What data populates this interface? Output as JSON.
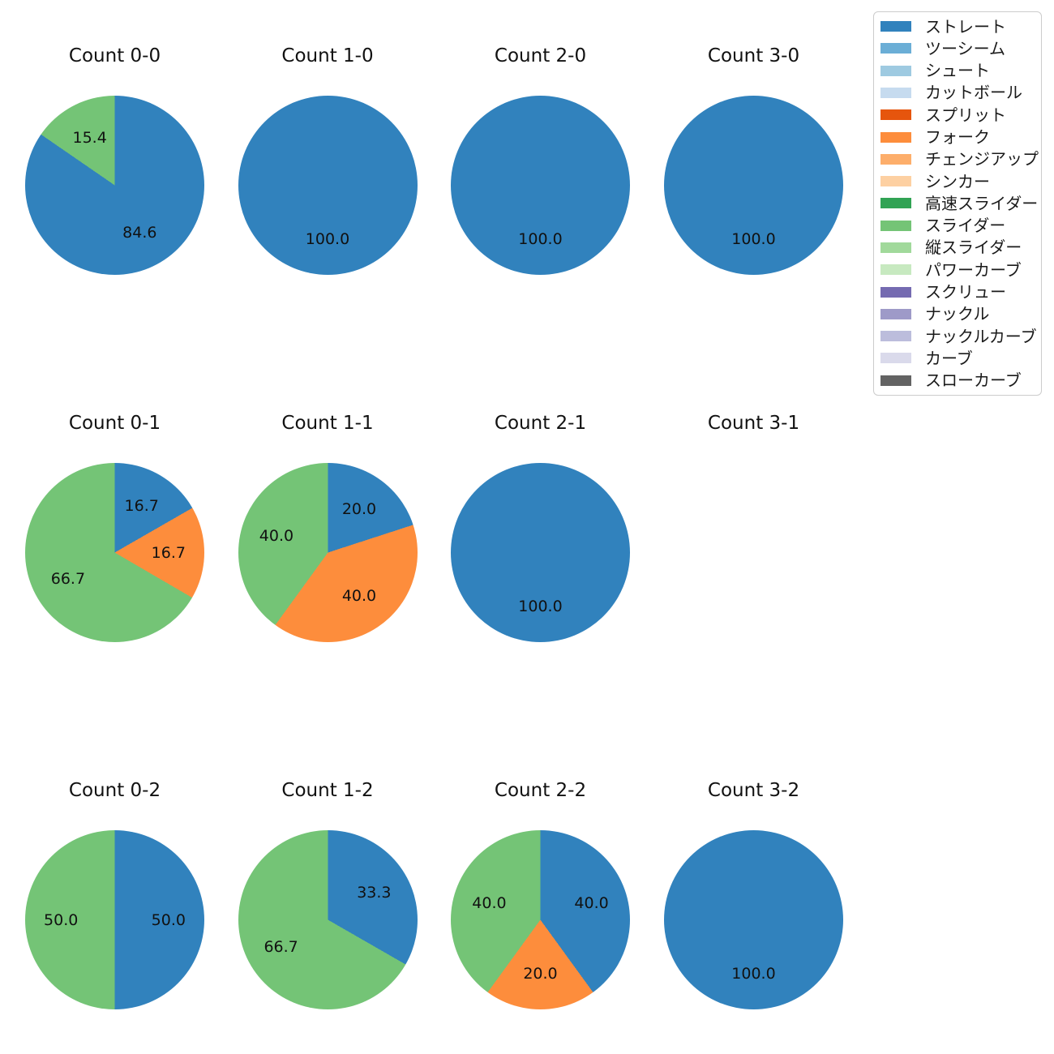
{
  "chart_data": {
    "type": "pie",
    "title": "",
    "grid": {
      "rows": 3,
      "cols": 4
    },
    "start_angle_deg_from_top": 0,
    "direction": "clockwise",
    "pct_distance": 0.6,
    "value_format": "one-decimal-percent",
    "legend": {
      "position": "outside-upper-right",
      "entries": [
        {
          "label": "ストレート",
          "color": "#3182bd"
        },
        {
          "label": "ツーシーム",
          "color": "#6baed6"
        },
        {
          "label": "シュート",
          "color": "#9ecae1"
        },
        {
          "label": "カットボール",
          "color": "#c6dbef"
        },
        {
          "label": "スプリット",
          "color": "#e6550d"
        },
        {
          "label": "フォーク",
          "color": "#fd8d3c"
        },
        {
          "label": "チェンジアップ",
          "color": "#fdae6b"
        },
        {
          "label": "シンカー",
          "color": "#fdd0a2"
        },
        {
          "label": "高速スライダー",
          "color": "#31a354"
        },
        {
          "label": "スライダー",
          "color": "#74c476"
        },
        {
          "label": "縦スライダー",
          "color": "#a1d99b"
        },
        {
          "label": "パワーカーブ",
          "color": "#c7e9c0"
        },
        {
          "label": "スクリュー",
          "color": "#756bb1"
        },
        {
          "label": "ナックル",
          "color": "#9e9ac8"
        },
        {
          "label": "ナックルカーブ",
          "color": "#bcbddc"
        },
        {
          "label": "カーブ",
          "color": "#dadaeb"
        },
        {
          "label": "スローカーブ",
          "color": "#636363"
        }
      ]
    },
    "charts": [
      {
        "title": "Count 0-0",
        "row": 0,
        "col": 0,
        "slices": [
          {
            "label": "ストレート",
            "pct": 84.6,
            "color": "#3182bd"
          },
          {
            "label": "スライダー",
            "pct": 15.4,
            "color": "#74c476"
          }
        ]
      },
      {
        "title": "Count 1-0",
        "row": 0,
        "col": 1,
        "slices": [
          {
            "label": "ストレート",
            "pct": 100.0,
            "color": "#3182bd"
          }
        ]
      },
      {
        "title": "Count 2-0",
        "row": 0,
        "col": 2,
        "slices": [
          {
            "label": "ストレート",
            "pct": 100.0,
            "color": "#3182bd"
          }
        ]
      },
      {
        "title": "Count 3-0",
        "row": 0,
        "col": 3,
        "slices": [
          {
            "label": "ストレート",
            "pct": 100.0,
            "color": "#3182bd"
          }
        ]
      },
      {
        "title": "Count 0-1",
        "row": 1,
        "col": 0,
        "slices": [
          {
            "label": "ストレート",
            "pct": 16.7,
            "color": "#3182bd"
          },
          {
            "label": "フォーク",
            "pct": 16.7,
            "color": "#fd8d3c"
          },
          {
            "label": "スライダー",
            "pct": 66.7,
            "color": "#74c476"
          }
        ]
      },
      {
        "title": "Count 1-1",
        "row": 1,
        "col": 1,
        "slices": [
          {
            "label": "ストレート",
            "pct": 20.0,
            "color": "#3182bd"
          },
          {
            "label": "フォーク",
            "pct": 40.0,
            "color": "#fd8d3c"
          },
          {
            "label": "スライダー",
            "pct": 40.0,
            "color": "#74c476"
          }
        ]
      },
      {
        "title": "Count 2-1",
        "row": 1,
        "col": 2,
        "slices": [
          {
            "label": "ストレート",
            "pct": 100.0,
            "color": "#3182bd"
          }
        ]
      },
      {
        "title": "Count 3-1",
        "row": 1,
        "col": 3,
        "slices": []
      },
      {
        "title": "Count 0-2",
        "row": 2,
        "col": 0,
        "slices": [
          {
            "label": "ストレート",
            "pct": 50.0,
            "color": "#3182bd"
          },
          {
            "label": "スライダー",
            "pct": 50.0,
            "color": "#74c476"
          }
        ]
      },
      {
        "title": "Count 1-2",
        "row": 2,
        "col": 1,
        "slices": [
          {
            "label": "ストレート",
            "pct": 33.3,
            "color": "#3182bd"
          },
          {
            "label": "スライダー",
            "pct": 66.7,
            "color": "#74c476"
          }
        ]
      },
      {
        "title": "Count 2-2",
        "row": 2,
        "col": 2,
        "slices": [
          {
            "label": "ストレート",
            "pct": 40.0,
            "color": "#3182bd"
          },
          {
            "label": "フォーク",
            "pct": 20.0,
            "color": "#fd8d3c"
          },
          {
            "label": "スライダー",
            "pct": 40.0,
            "color": "#74c476"
          }
        ]
      },
      {
        "title": "Count 3-2",
        "row": 2,
        "col": 3,
        "slices": [
          {
            "label": "ストレート",
            "pct": 100.0,
            "color": "#3182bd"
          }
        ]
      }
    ]
  }
}
